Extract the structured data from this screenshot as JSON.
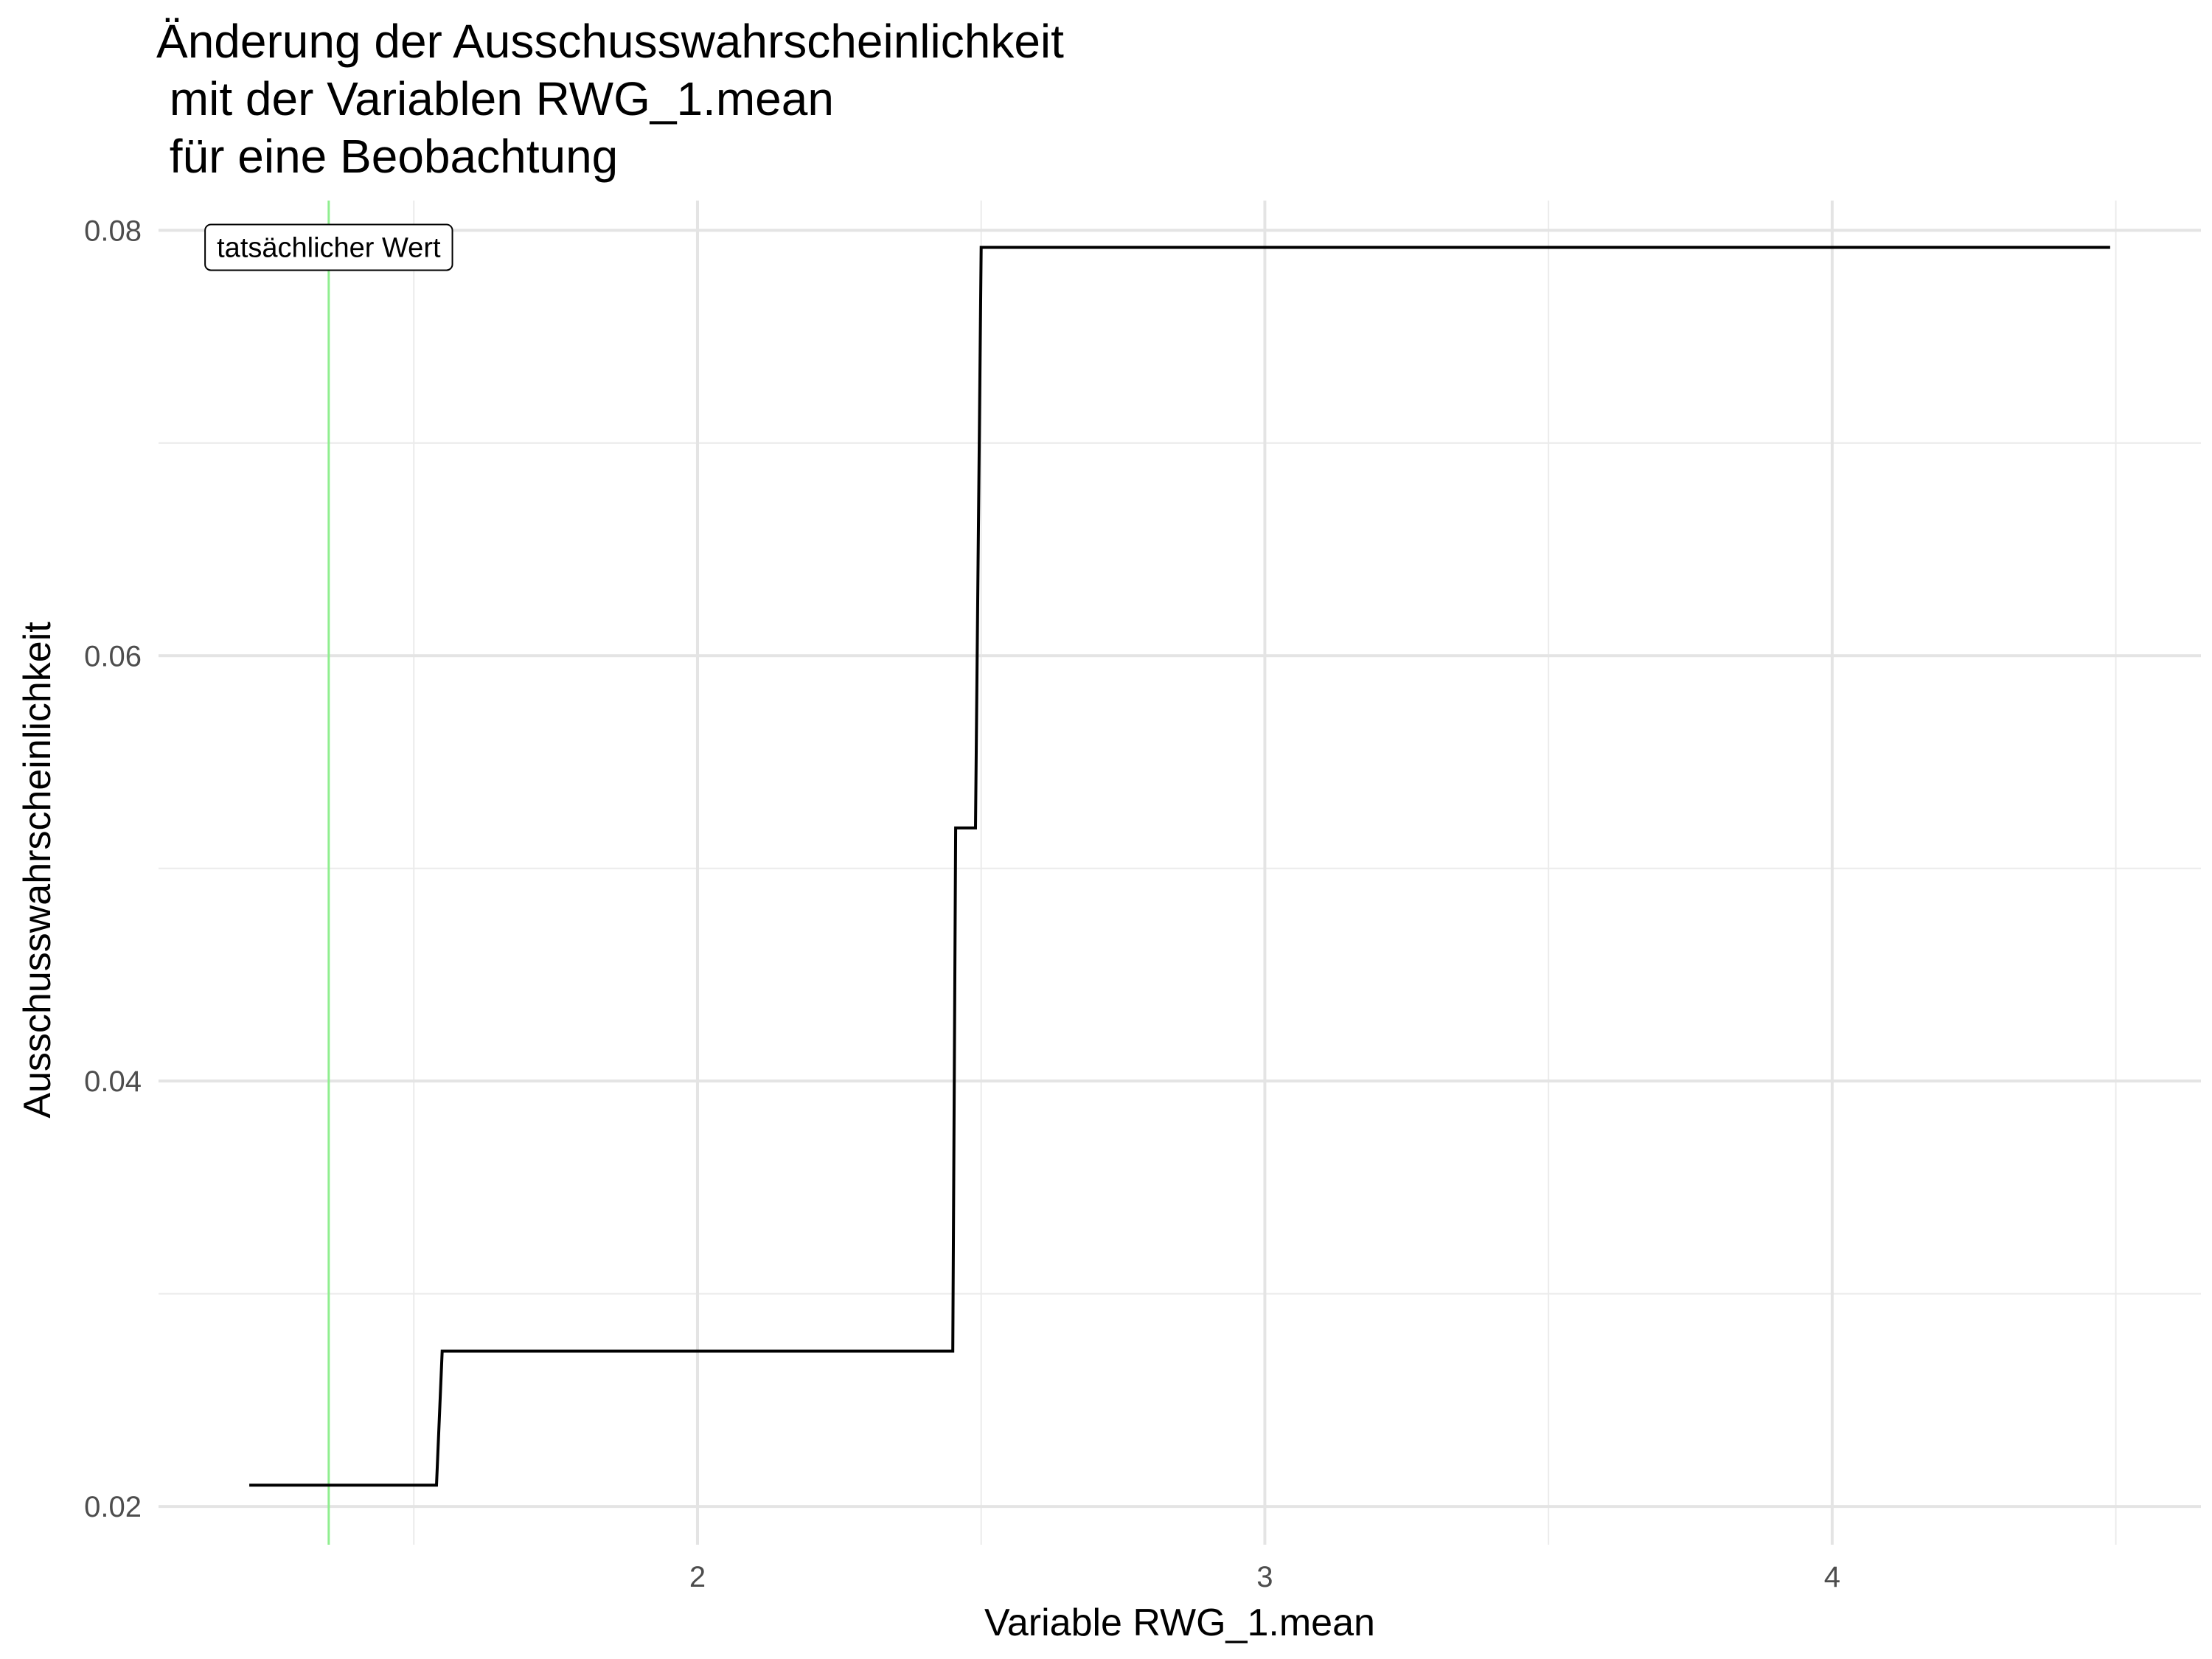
{
  "chart_data": {
    "type": "line",
    "line_style": "step",
    "title_lines": [
      "Änderung der Ausschusswahrscheinlichkeit",
      " mit der Variablen RWG_1.mean",
      " für eine Beobachtung"
    ],
    "xlabel": "Variable RWG_1.mean",
    "ylabel": "Ausschusswahrscheinlichkeit",
    "xlim": [
      1.05,
      4.65
    ],
    "ylim": [
      0.0182,
      0.0814
    ],
    "x_ticks": [
      {
        "value": 2,
        "label": "2"
      },
      {
        "value": 3,
        "label": "3"
      },
      {
        "value": 4,
        "label": "4"
      }
    ],
    "x_minor_ticks": [
      1.5,
      2.5,
      3.5,
      4.5
    ],
    "y_ticks": [
      {
        "value": 0.02,
        "label": "0.02"
      },
      {
        "value": 0.04,
        "label": "0.04"
      },
      {
        "value": 0.06,
        "label": "0.06"
      },
      {
        "value": 0.08,
        "label": "0.08"
      }
    ],
    "y_minor_ticks": [
      0.03,
      0.05,
      0.07
    ],
    "grid": true,
    "series": [
      {
        "color": "#000000",
        "points": [
          {
            "x": 1.21,
            "y": 0.021
          },
          {
            "x": 1.54,
            "y": 0.021
          },
          {
            "x": 1.55,
            "y": 0.0273
          },
          {
            "x": 2.45,
            "y": 0.0273
          },
          {
            "x": 2.455,
            "y": 0.0519
          },
          {
            "x": 2.49,
            "y": 0.0519
          },
          {
            "x": 2.5,
            "y": 0.0792
          },
          {
            "x": 4.49,
            "y": 0.0792
          }
        ]
      }
    ],
    "reference_line": {
      "x": 1.35,
      "color": "#90ee90",
      "label": "tatsächlicher Wert"
    }
  }
}
